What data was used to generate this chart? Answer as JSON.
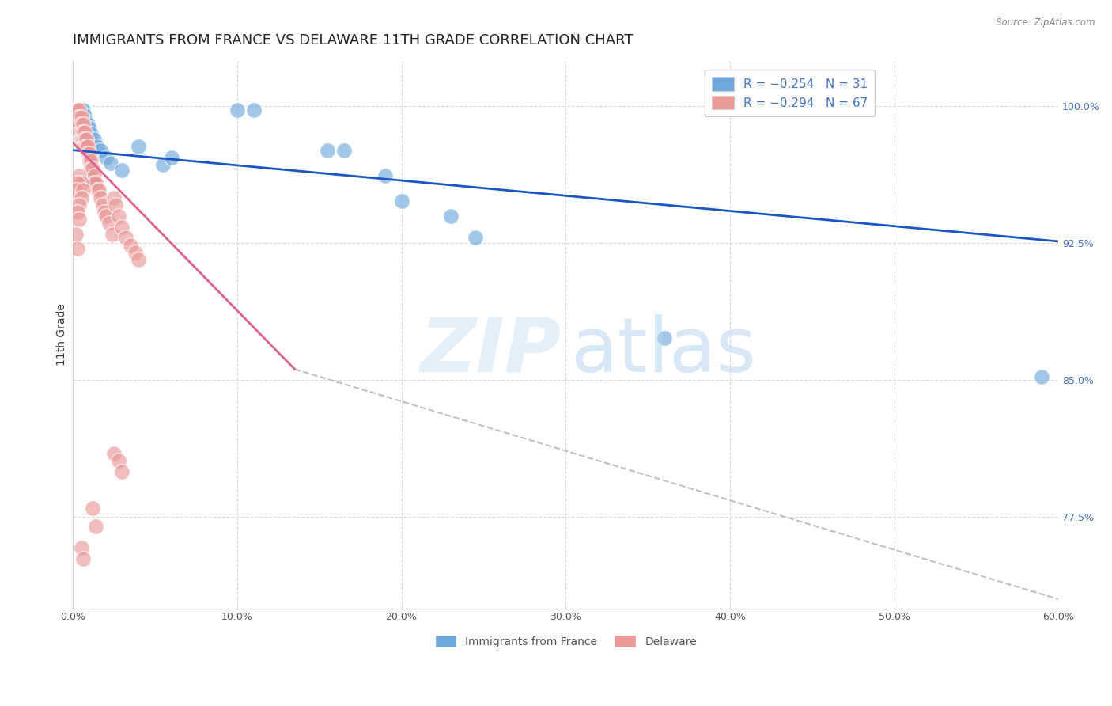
{
  "title": "IMMIGRANTS FROM FRANCE VS DELAWARE 11TH GRADE CORRELATION CHART",
  "source": "Source: ZipAtlas.com",
  "ylabel": "11th Grade",
  "y_labels_right": [
    "100.0%",
    "92.5%",
    "85.0%",
    "77.5%"
  ],
  "y_labels_right_vals": [
    1.0,
    0.925,
    0.85,
    0.775
  ],
  "xlim": [
    0.0,
    0.6
  ],
  "ylim": [
    0.725,
    1.025
  ],
  "legend_blue_label": "R = −0.254   N = 31",
  "legend_pink_label": "R = −0.294   N = 67",
  "legend_bottom_blue": "Immigrants from France",
  "legend_bottom_pink": "Delaware",
  "blue_color": "#6fa8dc",
  "pink_color": "#ea9999",
  "trendline_blue_color": "#1a56c4",
  "trendline_pink_color": "#e06090",
  "trendline_gray_color": "#c0c0c0",
  "grid_color": "#d9d9d9",
  "blue_dots": [
    [
      0.001,
      0.998
    ],
    [
      0.002,
      0.998
    ],
    [
      0.003,
      0.998
    ],
    [
      0.004,
      0.995
    ],
    [
      0.005,
      0.998
    ],
    [
      0.006,
      0.998
    ],
    [
      0.007,
      0.995
    ],
    [
      0.008,
      0.992
    ],
    [
      0.009,
      0.99
    ],
    [
      0.01,
      0.988
    ],
    [
      0.011,
      0.985
    ],
    [
      0.013,
      0.982
    ],
    [
      0.015,
      0.978
    ],
    [
      0.017,
      0.976
    ],
    [
      0.02,
      0.972
    ],
    [
      0.023,
      0.969
    ],
    [
      0.03,
      0.965
    ],
    [
      0.04,
      0.978
    ],
    [
      0.055,
      0.968
    ],
    [
      0.06,
      0.972
    ],
    [
      0.1,
      0.998
    ],
    [
      0.11,
      0.998
    ],
    [
      0.155,
      0.976
    ],
    [
      0.165,
      0.976
    ],
    [
      0.19,
      0.962
    ],
    [
      0.2,
      0.948
    ],
    [
      0.23,
      0.94
    ],
    [
      0.245,
      0.928
    ],
    [
      0.36,
      0.873
    ],
    [
      0.59,
      0.852
    ],
    [
      0.012,
      0.96
    ]
  ],
  "pink_dots": [
    [
      0.001,
      0.998
    ],
    [
      0.002,
      0.998
    ],
    [
      0.002,
      0.994
    ],
    [
      0.003,
      0.998
    ],
    [
      0.003,
      0.994
    ],
    [
      0.003,
      0.99
    ],
    [
      0.004,
      0.998
    ],
    [
      0.004,
      0.994
    ],
    [
      0.004,
      0.99
    ],
    [
      0.004,
      0.986
    ],
    [
      0.005,
      0.994
    ],
    [
      0.005,
      0.99
    ],
    [
      0.005,
      0.986
    ],
    [
      0.005,
      0.982
    ],
    [
      0.006,
      0.99
    ],
    [
      0.006,
      0.986
    ],
    [
      0.006,
      0.982
    ],
    [
      0.006,
      0.978
    ],
    [
      0.007,
      0.986
    ],
    [
      0.007,
      0.982
    ],
    [
      0.007,
      0.978
    ],
    [
      0.008,
      0.982
    ],
    [
      0.008,
      0.978
    ],
    [
      0.009,
      0.978
    ],
    [
      0.009,
      0.974
    ],
    [
      0.01,
      0.974
    ],
    [
      0.01,
      0.97
    ],
    [
      0.011,
      0.97
    ],
    [
      0.011,
      0.966
    ],
    [
      0.012,
      0.966
    ],
    [
      0.013,
      0.962
    ],
    [
      0.013,
      0.958
    ],
    [
      0.014,
      0.958
    ],
    [
      0.015,
      0.954
    ],
    [
      0.016,
      0.954
    ],
    [
      0.017,
      0.95
    ],
    [
      0.018,
      0.946
    ],
    [
      0.019,
      0.942
    ],
    [
      0.02,
      0.94
    ],
    [
      0.022,
      0.936
    ],
    [
      0.024,
      0.93
    ],
    [
      0.025,
      0.95
    ],
    [
      0.026,
      0.946
    ],
    [
      0.028,
      0.94
    ],
    [
      0.03,
      0.934
    ],
    [
      0.032,
      0.928
    ],
    [
      0.035,
      0.924
    ],
    [
      0.038,
      0.92
    ],
    [
      0.04,
      0.916
    ],
    [
      0.004,
      0.962
    ],
    [
      0.005,
      0.958
    ],
    [
      0.003,
      0.958
    ],
    [
      0.002,
      0.954
    ],
    [
      0.006,
      0.954
    ],
    [
      0.005,
      0.95
    ],
    [
      0.004,
      0.946
    ],
    [
      0.003,
      0.942
    ],
    [
      0.004,
      0.938
    ],
    [
      0.002,
      0.93
    ],
    [
      0.003,
      0.922
    ],
    [
      0.012,
      0.78
    ],
    [
      0.014,
      0.77
    ],
    [
      0.005,
      0.758
    ],
    [
      0.006,
      0.752
    ],
    [
      0.025,
      0.81
    ],
    [
      0.028,
      0.806
    ],
    [
      0.03,
      0.8
    ]
  ],
  "blue_trend_x": [
    0.0,
    0.6
  ],
  "blue_trend_y": [
    0.976,
    0.926
  ],
  "pink_trend_x": [
    0.0,
    0.135
  ],
  "pink_trend_y": [
    0.98,
    0.856
  ],
  "gray_trend_x": [
    0.135,
    0.6
  ],
  "gray_trend_y": [
    0.856,
    0.73
  ],
  "background_color": "#ffffff",
  "title_fontsize": 13
}
